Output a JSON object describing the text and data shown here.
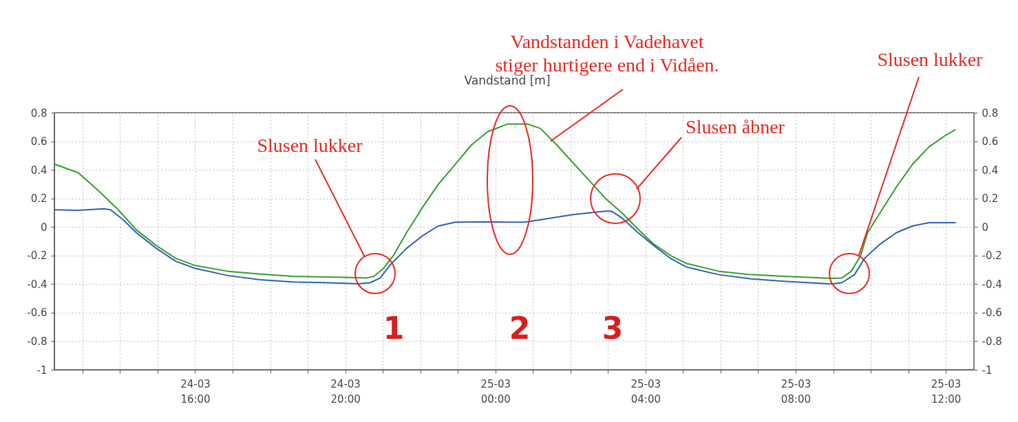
{
  "chart_data": {
    "type": "line",
    "title": "Vandstand [m]",
    "series": [
      {
        "color": "#2e9e2a",
        "x": [
          "--03-24T12:15",
          "--03-24T12:53",
          "--03-24T13:24",
          "--03-24T13:55",
          "--03-24T14:26",
          "--03-24T14:58",
          "--03-24T15:29",
          "--03-24T16:00",
          "--03-24T16:52",
          "--03-24T17:44",
          "--03-24T18:36",
          "--03-24T19:28",
          "--03-24T20:35",
          "--03-24T20:46",
          "--03-24T21:01",
          "--03-24T21:17",
          "--03-24T21:38",
          "--03-24T22:04",
          "--03-24T22:29",
          "--03-24T22:56",
          "--03-24T23:22",
          "--03-24T23:47",
          "--03-25T00:19",
          "--03-25T00:52",
          "--03-25T01:12",
          "--03-25T01:38",
          "--03-25T02:04",
          "--03-25T02:30",
          "--03-25T02:56",
          "--03-25T03:22",
          "--03-25T03:48",
          "--03-25T04:13",
          "--03-25T04:40",
          "--03-25T05:05",
          "--03-25T05:57",
          "--03-25T06:49",
          "--03-25T07:41",
          "--03-25T08:58",
          "--03-25T09:14",
          "--03-25T09:29",
          "--03-25T09:44",
          "--03-25T09:55",
          "--03-25T10:15",
          "--03-25T10:41",
          "--03-25T11:07",
          "--03-25T11:33",
          "--03-25T11:59",
          "--03-25T12:15"
        ],
        "values": [
          0.44,
          0.38,
          0.26,
          0.13,
          -0.02,
          -0.13,
          -0.22,
          -0.27,
          -0.31,
          -0.33,
          -0.345,
          -0.35,
          -0.357,
          -0.345,
          -0.29,
          -0.2,
          -0.04,
          0.14,
          0.3,
          0.44,
          0.575,
          0.665,
          0.72,
          0.72,
          0.69,
          0.575,
          0.45,
          0.325,
          0.2,
          0.1,
          -0.016,
          -0.12,
          -0.2,
          -0.255,
          -0.31,
          -0.334,
          -0.345,
          -0.36,
          -0.357,
          -0.31,
          -0.2,
          -0.04,
          0.1,
          0.28,
          0.44,
          0.56,
          0.64,
          0.68
        ]
      },
      {
        "color": "#2f5fb3",
        "x": [
          "--03-24T12:15",
          "--03-24T12:53",
          "--03-24T13:34",
          "--03-24T13:45",
          "--03-24T14:05",
          "--03-24T14:26",
          "--03-24T14:58",
          "--03-24T15:29",
          "--03-24T16:00",
          "--03-24T16:52",
          "--03-24T17:44",
          "--03-24T18:36",
          "--03-24T19:28",
          "--03-24T20:20",
          "--03-24T20:40",
          "--03-24T20:56",
          "--03-24T21:11",
          "--03-24T21:38",
          "--03-24T22:04",
          "--03-24T22:29",
          "--03-24T22:56",
          "--03-24T23:47",
          "--03-25T00:20",
          "--03-25T00:47",
          "--03-25T01:12",
          "--03-25T02:04",
          "--03-25T02:56",
          "--03-25T03:06",
          "--03-25T03:22",
          "--03-25T03:48",
          "--03-25T04:13",
          "--03-25T04:40",
          "--03-25T05:05",
          "--03-25T05:57",
          "--03-25T06:49",
          "--03-25T07:41",
          "--03-25T08:58",
          "--03-25T09:14",
          "--03-25T09:34",
          "--03-25T09:50",
          "--03-25T10:15",
          "--03-25T10:41",
          "--03-25T11:07",
          "--03-25T11:33",
          "--03-25T12:15"
        ],
        "values": [
          0.12,
          0.116,
          0.127,
          0.12,
          0.05,
          -0.04,
          -0.15,
          -0.24,
          -0.29,
          -0.34,
          -0.37,
          -0.385,
          -0.39,
          -0.398,
          -0.39,
          -0.357,
          -0.27,
          -0.15,
          -0.06,
          0.007,
          0.034,
          0.036,
          0.034,
          0.034,
          0.05,
          0.086,
          0.11,
          0.11,
          0.064,
          -0.04,
          -0.13,
          -0.22,
          -0.28,
          -0.334,
          -0.364,
          -0.38,
          -0.4,
          -0.39,
          -0.334,
          -0.22,
          -0.12,
          -0.04,
          0.007,
          0.03,
          0.03
        ]
      }
    ],
    "xlim": [
      "--03-24T12:15",
      "--03-25T12:45"
    ],
    "xticks": [
      {
        "value": "--03-24T13:00",
        "label": null
      },
      {
        "value": "--03-24T14:00",
        "label": null
      },
      {
        "value": "--03-24T15:00",
        "label": null
      },
      {
        "value": "--03-24T16:00",
        "label": "24-03 16:00"
      },
      {
        "value": "--03-24T17:00",
        "label": null
      },
      {
        "value": "--03-24T18:00",
        "label": null
      },
      {
        "value": "--03-24T19:00",
        "label": null
      },
      {
        "value": "--03-24T20:00",
        "label": "24-03 20:00"
      },
      {
        "value": "--03-24T21:00",
        "label": null
      },
      {
        "value": "--03-24T22:00",
        "label": null
      },
      {
        "value": "--03-24T23:00",
        "label": null
      },
      {
        "value": "--03-25T00:00",
        "label": "25-03 00:00"
      },
      {
        "value": "--03-25T01:00",
        "label": null
      },
      {
        "value": "--03-25T02:00",
        "label": null
      },
      {
        "value": "--03-25T03:00",
        "label": null
      },
      {
        "value": "--03-25T04:00",
        "label": "25-03 04:00"
      },
      {
        "value": "--03-25T05:00",
        "label": null
      },
      {
        "value": "--03-25T06:00",
        "label": null
      },
      {
        "value": "--03-25T07:00",
        "label": null
      },
      {
        "value": "--03-25T08:00",
        "label": "25-03 08:00"
      },
      {
        "value": "--03-25T09:00",
        "label": null
      },
      {
        "value": "--03-25T10:00",
        "label": null
      },
      {
        "value": "--03-25T11:00",
        "label": null
      },
      {
        "value": "--03-25T12:00",
        "label": "25-03 12:00"
      }
    ],
    "ylim": [
      -1,
      0.8
    ],
    "yticks": [
      -1,
      -0.8,
      -0.6,
      -0.4,
      -0.2,
      0,
      0.2,
      0.4,
      0.6,
      0.8
    ],
    "y2lim": [
      -1,
      0.8
    ],
    "y2ticks": [
      -1,
      -0.8,
      -0.6,
      -0.4,
      -0.2,
      0,
      0.2,
      0.4,
      0.6,
      0.8
    ],
    "grid": true,
    "marker": "none",
    "line_style": "solid",
    "annotations": [
      "Slusen lukker",
      {
        "text": "Vandstanden i Vadehavet stiger hurtigere end i Vidåen.",
        "x": "--03-25T01:28",
        "y": 0.6
      },
      "Slusen åbner",
      {
        "text": "Slusen lukker",
        "x": "--03-25T09:41",
        "y": -0.2
      },
      "1",
      "2",
      "3"
    ]
  }
}
